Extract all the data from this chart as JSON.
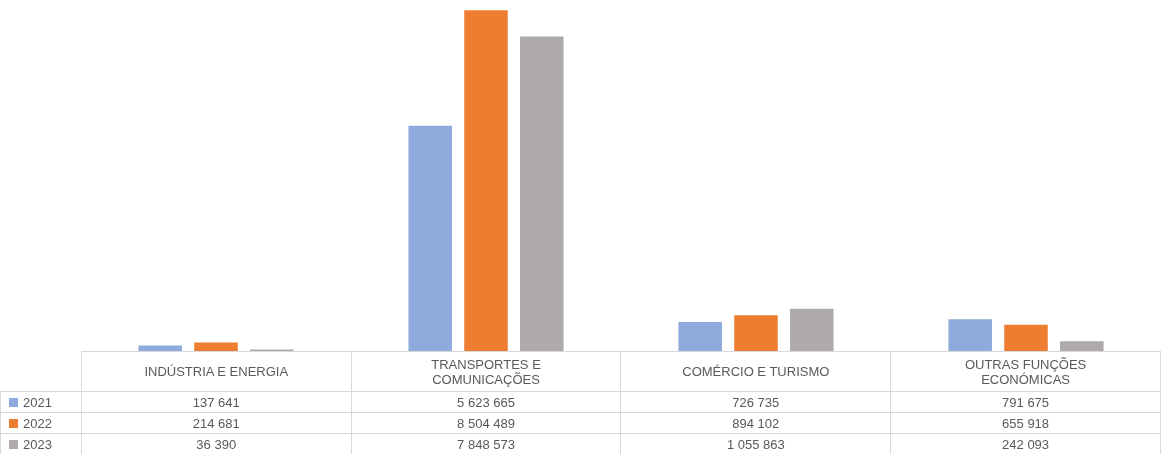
{
  "chart_data": {
    "type": "bar",
    "categories": [
      "INDÚSTRIA E ENERGIA",
      "TRANSPORTES E COMUNICAÇÕES",
      "COMÉRCIO E TURISMO",
      "OUTRAS FUNÇÕES ECONÓMICAS"
    ],
    "series": [
      {
        "name": "2021",
        "color": "#8faadc",
        "values": [
          137641,
          5623665,
          726735,
          791675
        ]
      },
      {
        "name": "2022",
        "color": "#ed7d31",
        "values": [
          214681,
          8504489,
          894102,
          655918
        ]
      },
      {
        "name": "2023",
        "color": "#aeaaaa",
        "values": [
          36390,
          7848573,
          1055863,
          242093
        ]
      }
    ],
    "data_labels": true,
    "legend": "bottom"
  }
}
